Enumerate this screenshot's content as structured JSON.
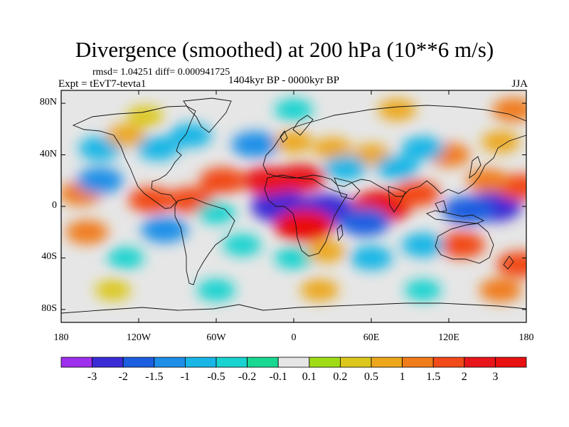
{
  "title": "Divergence (smoothed) at 200 hPa (10**6 m/s)",
  "stats": "rmsd= 1.04251 diff= 0.000941725",
  "experiment": "Expt = tEvT7-tevta1",
  "period": "1404kyr BP - 0000kyr BP",
  "season": "JJA",
  "map": {
    "lat_range": [
      -90,
      90
    ],
    "lon_range": [
      -180,
      180
    ],
    "lat_ticks": [
      {
        "value": 80,
        "label": "80N"
      },
      {
        "value": 40,
        "label": "40N"
      },
      {
        "value": 0,
        "label": "0"
      },
      {
        "value": -40,
        "label": "40S"
      },
      {
        "value": -80,
        "label": "80S"
      }
    ],
    "lon_ticks": [
      {
        "value": -180,
        "label": "180"
      },
      {
        "value": -120,
        "label": "120W"
      },
      {
        "value": -60,
        "label": "60W"
      },
      {
        "value": 0,
        "label": "0"
      },
      {
        "value": 60,
        "label": "60E"
      },
      {
        "value": 120,
        "label": "120E"
      },
      {
        "value": 180,
        "label": "180"
      }
    ],
    "background_color": "#e6e6e6",
    "features": [
      {
        "lon": -10,
        "lat": 0,
        "value": -3
      },
      {
        "lon": 25,
        "lat": -3,
        "value": -3
      },
      {
        "lon": 155,
        "lat": 0,
        "value": -2.5
      },
      {
        "lon": 135,
        "lat": -3,
        "value": -2
      },
      {
        "lon": 8,
        "lat": -15,
        "value": 3
      },
      {
        "lon": -20,
        "lat": 20,
        "value": 2
      },
      {
        "lon": 5,
        "lat": 22,
        "value": 2
      },
      {
        "lon": 68,
        "lat": 0,
        "value": 3
      },
      {
        "lon": 55,
        "lat": -12,
        "value": -2
      },
      {
        "lon": -110,
        "lat": 5,
        "value": 1.5
      },
      {
        "lon": -80,
        "lat": 5,
        "value": 1.5
      },
      {
        "lon": -55,
        "lat": 20,
        "value": 1.5
      },
      {
        "lon": -165,
        "lat": 10,
        "value": 1
      },
      {
        "lon": -150,
        "lat": 20,
        "value": -1.5
      },
      {
        "lon": -100,
        "lat": -18,
        "value": -1.5
      },
      {
        "lon": -60,
        "lat": -5,
        "value": -0.5
      },
      {
        "lon": -40,
        "lat": -30,
        "value": -0.5
      },
      {
        "lon": -160,
        "lat": -20,
        "value": 1
      },
      {
        "lon": 175,
        "lat": 15,
        "value": 1.5
      },
      {
        "lon": 95,
        "lat": 10,
        "value": 1.5
      },
      {
        "lon": 150,
        "lat": 20,
        "value": 1
      },
      {
        "lon": 120,
        "lat": 40,
        "value": 1
      },
      {
        "lon": 60,
        "lat": 40,
        "value": 0.5
      },
      {
        "lon": 30,
        "lat": 45,
        "value": 0.5
      },
      {
        "lon": -30,
        "lat": 48,
        "value": -1.5
      },
      {
        "lon": 0,
        "lat": 50,
        "value": 0.5
      },
      {
        "lon": 40,
        "lat": 30,
        "value": -1
      },
      {
        "lon": 80,
        "lat": 30,
        "value": -1
      },
      {
        "lon": 100,
        "lat": 45,
        "value": -1
      },
      {
        "lon": 160,
        "lat": 50,
        "value": 0.5
      },
      {
        "lon": -150,
        "lat": 45,
        "value": -1
      },
      {
        "lon": -105,
        "lat": 45,
        "value": -1
      },
      {
        "lon": -130,
        "lat": 55,
        "value": 0.5
      },
      {
        "lon": -80,
        "lat": 55,
        "value": -1
      },
      {
        "lon": -115,
        "lat": 70,
        "value": 0.3
      },
      {
        "lon": 0,
        "lat": 75,
        "value": -0.5
      },
      {
        "lon": 80,
        "lat": 75,
        "value": 0.5
      },
      {
        "lon": 170,
        "lat": 75,
        "value": 1
      },
      {
        "lon": 130,
        "lat": -30,
        "value": 1.5
      },
      {
        "lon": 100,
        "lat": -30,
        "value": -1
      },
      {
        "lon": 60,
        "lat": -40,
        "value": -1
      },
      {
        "lon": 0,
        "lat": -40,
        "value": -0.5
      },
      {
        "lon": 25,
        "lat": -35,
        "value": 0.5
      },
      {
        "lon": -130,
        "lat": -40,
        "value": -0.3
      },
      {
        "lon": -60,
        "lat": -65,
        "value": -0.5
      },
      {
        "lon": -140,
        "lat": -65,
        "value": 0.2
      },
      {
        "lon": 20,
        "lat": -65,
        "value": 0.5
      },
      {
        "lon": 100,
        "lat": -65,
        "value": -0.3
      },
      {
        "lon": 160,
        "lat": -65,
        "value": 1
      },
      {
        "lon": 175,
        "lat": -45,
        "value": 1.5
      }
    ]
  },
  "colorbar": {
    "levels": [
      "-3",
      "-2",
      "-1.5",
      "-1",
      "-0.5",
      "-0.2",
      "-0.1",
      "0.1",
      "0.2",
      "0.5",
      "1",
      "1.5",
      "2",
      "3"
    ],
    "thresholds": [
      -3,
      -2,
      -1.5,
      -1,
      -0.5,
      -0.2,
      -0.1,
      0.1,
      0.2,
      0.5,
      1,
      1.5,
      2,
      3
    ],
    "colors": [
      "#9f2fee",
      "#3b2bd6",
      "#1b5fe0",
      "#1e8fe8",
      "#18b6e6",
      "#18d3cf",
      "#18d892",
      "#e6e6e6",
      "#a0dc16",
      "#dcc71c",
      "#eca71c",
      "#f07c1a",
      "#f24a18",
      "#e8161a",
      "#e81010"
    ]
  }
}
